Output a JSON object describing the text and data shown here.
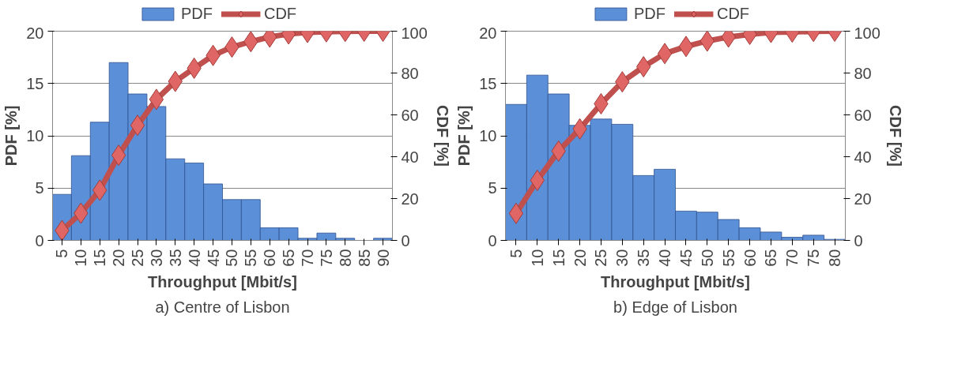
{
  "chart_data": [
    {
      "type": "bar",
      "xlabel": "Throughput [Mbit/s]",
      "ylabel": "PDF [%]",
      "y2label": "CDF [%]",
      "categories": [
        "5",
        "10",
        "15",
        "20",
        "25",
        "30",
        "35",
        "40",
        "45",
        "50",
        "55",
        "60",
        "65",
        "70",
        "75",
        "80",
        "85",
        "90"
      ],
      "series": [
        {
          "name": "PDF",
          "color": "#5b8fd8",
          "values": [
            4.4,
            8.1,
            11.3,
            17.0,
            14.0,
            12.8,
            7.8,
            7.4,
            5.4,
            3.9,
            3.9,
            1.2,
            1.2,
            0.2,
            0.7,
            0.2,
            null,
            0.2
          ]
        },
        {
          "name": "CDF",
          "type": "line",
          "axis": "y2",
          "color": "#c0504d",
          "marker": "diamond",
          "values": [
            4.7,
            13,
            24,
            40.7,
            55,
            67.4,
            76,
            82.3,
            88.4,
            92.4,
            95,
            97.2,
            98.7,
            99.4,
            99.7,
            99.9,
            100,
            100
          ]
        }
      ],
      "ylim": [
        0,
        20
      ],
      "yticks": [
        0,
        5,
        10,
        15,
        20
      ],
      "y2lim": [
        0,
        100
      ],
      "y2ticks": [
        0,
        20,
        40,
        60,
        80,
        100
      ],
      "grid": "y",
      "legend": "top",
      "annotations": [
        "a) Centre of Lisbon"
      ]
    },
    {
      "type": "bar",
      "xlabel": "Throughput [Mbit/s]",
      "ylabel": "PDF [%]",
      "y2label": "CDF [%]",
      "categories": [
        "5",
        "10",
        "15",
        "20",
        "25",
        "30",
        "35",
        "40",
        "45",
        "50",
        "55",
        "60",
        "65",
        "70",
        "75",
        "80"
      ],
      "series": [
        {
          "name": "PDF",
          "color": "#5b8fd8",
          "values": [
            13.0,
            15.8,
            14.0,
            11.0,
            11.6,
            11.1,
            6.2,
            6.8,
            2.8,
            2.7,
            2.0,
            1.2,
            0.8,
            0.3,
            0.5,
            0.1
          ]
        },
        {
          "name": "CDF",
          "type": "line",
          "axis": "y2",
          "color": "#c0504d",
          "marker": "diamond",
          "values": [
            12.9,
            28.7,
            42.7,
            53.3,
            65.3,
            75.8,
            83,
            89.3,
            92.7,
            95.3,
            97.2,
            98.5,
            99.4,
            99.6,
            99.9,
            100
          ]
        }
      ],
      "ylim": [
        0,
        20
      ],
      "yticks": [
        0,
        5,
        10,
        15,
        20
      ],
      "y2lim": [
        0,
        100
      ],
      "y2ticks": [
        0,
        20,
        40,
        60,
        80,
        100
      ],
      "grid": "y",
      "legend": "top",
      "annotations": [
        "b) Edge of Lisbon"
      ]
    }
  ]
}
